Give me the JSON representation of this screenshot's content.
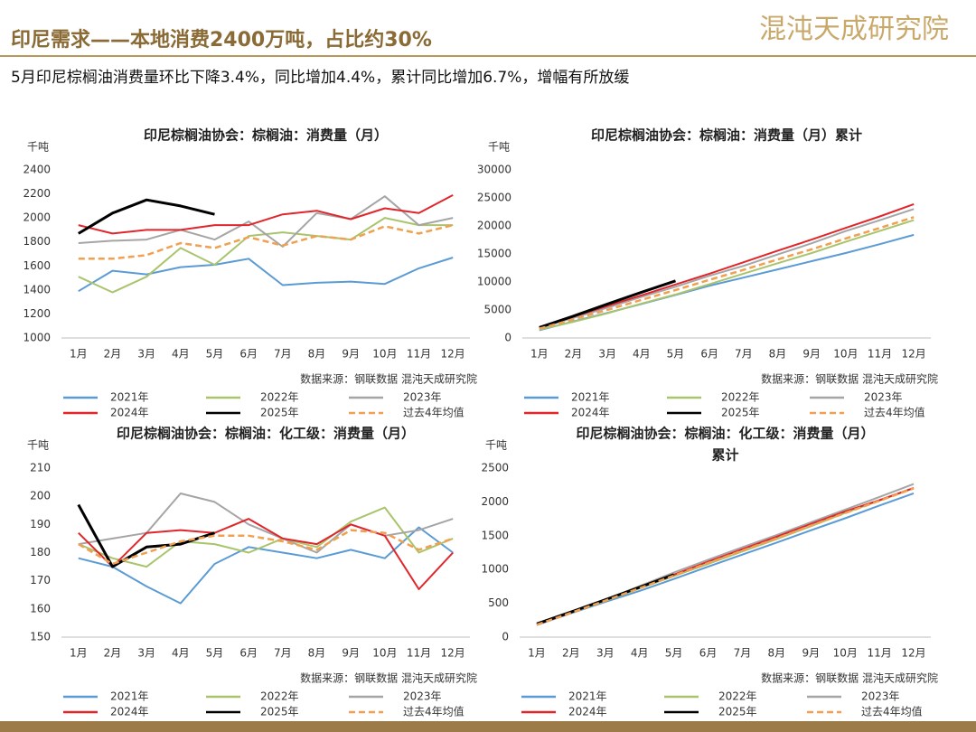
{
  "header": {
    "title": "印尼需求——本地消费2400万吨，占比约30%",
    "logo": "混沌天成研究院",
    "subtitle": "5月印尼棕榈油消费量环比下降3.4%，同比增加4.4%，累计同比增加6.7%，增幅有所放缓"
  },
  "chart_data": [
    {
      "type": "line",
      "title": "印尼棕榈油协会：棕榈油：消费量（月）",
      "y_label": "千吨",
      "source": "数据来源：钢联数据  混沌天成研究院",
      "categories": [
        "1月",
        "2月",
        "3月",
        "4月",
        "5月",
        "6月",
        "7月",
        "8月",
        "9月",
        "10月",
        "11月",
        "12月"
      ],
      "ylim": [
        1000,
        2400
      ],
      "yticks": [
        1000,
        1200,
        1400,
        1600,
        1800,
        2000,
        2200,
        2400
      ],
      "series": [
        {
          "name": "2021年",
          "color": "#5b9bd5",
          "values": [
            1390,
            1560,
            1530,
            1590,
            1610,
            1660,
            1440,
            1460,
            1470,
            1450,
            1580,
            1670
          ]
        },
        {
          "name": "2022年",
          "color": "#a9c46c",
          "values": [
            1510,
            1380,
            1510,
            1750,
            1610,
            1850,
            1880,
            1850,
            1820,
            2000,
            1940,
            1940
          ]
        },
        {
          "name": "2023年",
          "color": "#a5a5a5",
          "values": [
            1790,
            1810,
            1820,
            1900,
            1820,
            1970,
            1760,
            2040,
            1990,
            2180,
            1940,
            2000
          ]
        },
        {
          "name": "2024年",
          "color": "#e0262b",
          "values": [
            1940,
            1870,
            1900,
            1900,
            1940,
            1940,
            2030,
            2060,
            1990,
            2080,
            2040,
            2190
          ]
        },
        {
          "name": "2025年",
          "color": "#000000",
          "values": [
            1870,
            2040,
            2150,
            2100,
            2030,
            null,
            null,
            null,
            null,
            null,
            null,
            null
          ]
        },
        {
          "name": "过去4年均值",
          "color": "#f0a050",
          "dash": true,
          "values": [
            1660,
            1660,
            1690,
            1790,
            1750,
            1840,
            1770,
            1850,
            1820,
            1930,
            1870,
            1940
          ]
        }
      ]
    },
    {
      "type": "line",
      "title": "印尼棕榈油协会：棕榈油：消费量（月）累计",
      "y_label": "千吨",
      "source": "数据来源：钢联数据  混沌天成研究院",
      "categories": [
        "1月",
        "2月",
        "3月",
        "4月",
        "5月",
        "6月",
        "7月",
        "8月",
        "9月",
        "10月",
        "11月",
        "12月"
      ],
      "ylim": [
        0,
        30000
      ],
      "yticks": [
        0,
        5000,
        10000,
        15000,
        20000,
        25000,
        30000
      ],
      "series": [
        {
          "name": "2021年",
          "color": "#5b9bd5",
          "values": [
            1390,
            2950,
            4480,
            6070,
            7680,
            9340,
            10780,
            12240,
            13710,
            15160,
            16740,
            18410
          ]
        },
        {
          "name": "2022年",
          "color": "#a9c46c",
          "values": [
            1510,
            2890,
            4400,
            6150,
            7760,
            9610,
            11490,
            13340,
            15160,
            17160,
            19100,
            21040
          ]
        },
        {
          "name": "2023年",
          "color": "#a5a5a5",
          "values": [
            1790,
            3600,
            5420,
            7320,
            9140,
            11110,
            12870,
            14910,
            16900,
            19080,
            21020,
            23020
          ]
        },
        {
          "name": "2024年",
          "color": "#e0262b",
          "values": [
            1940,
            3810,
            5710,
            7610,
            9550,
            11490,
            13520,
            15580,
            17570,
            19650,
            21690,
            23880
          ]
        },
        {
          "name": "2025年",
          "color": "#000000",
          "values": [
            1870,
            3910,
            6060,
            8160,
            10190,
            null,
            null,
            null,
            null,
            null,
            null,
            null
          ]
        },
        {
          "name": "过去4年均值",
          "color": "#f0a050",
          "dash": true,
          "values": [
            1660,
            3320,
            5010,
            6800,
            8550,
            10390,
            12160,
            14010,
            15830,
            17760,
            19630,
            21570
          ]
        }
      ]
    },
    {
      "type": "line",
      "title": "印尼棕榈油协会：棕榈油：化工级：消费量（月）",
      "y_label": "千吨",
      "source": "数据来源：钢联数据  混沌天成研究院",
      "categories": [
        "1月",
        "2月",
        "3月",
        "4月",
        "5月",
        "6月",
        "7月",
        "8月",
        "9月",
        "10月",
        "11月",
        "12月"
      ],
      "ylim": [
        150,
        210
      ],
      "yticks": [
        150,
        160,
        170,
        180,
        190,
        200,
        210
      ],
      "series": [
        {
          "name": "2021年",
          "color": "#5b9bd5",
          "values": [
            178,
            175,
            168,
            162,
            176,
            182,
            180,
            178,
            181,
            178,
            189,
            180
          ]
        },
        {
          "name": "2022年",
          "color": "#a9c46c",
          "values": [
            183,
            178,
            175,
            184,
            183,
            180,
            185,
            182,
            191,
            196,
            180,
            185
          ]
        },
        {
          "name": "2023年",
          "color": "#a5a5a5",
          "values": [
            183,
            185,
            187,
            201,
            198,
            190,
            185,
            180,
            190,
            186,
            188,
            192
          ]
        },
        {
          "name": "2024年",
          "color": "#e0262b",
          "values": [
            187,
            175,
            187,
            188,
            187,
            192,
            185,
            183,
            190,
            186,
            167,
            180
          ]
        },
        {
          "name": "2025年",
          "color": "#000000",
          "values": [
            197,
            175,
            182,
            183,
            187,
            null,
            null,
            null,
            null,
            null,
            null,
            null
          ]
        },
        {
          "name": "过去4年均值",
          "color": "#f0a050",
          "dash": true,
          "values": [
            183,
            176,
            180,
            184,
            186,
            186,
            184,
            181,
            188,
            187,
            181,
            185
          ]
        }
      ]
    },
    {
      "type": "line",
      "title": "印尼棕榈油协会：棕榈油：化工级：消费量（月）",
      "subtitle": "累计",
      "y_label": "千吨",
      "source": "数据来源：钢联数据  混沌天成研究院",
      "categories": [
        "1月",
        "2月",
        "3月",
        "4月",
        "5月",
        "6月",
        "7月",
        "8月",
        "9月",
        "10月",
        "11月",
        "12月"
      ],
      "ylim": [
        0,
        2500
      ],
      "yticks": [
        0,
        500,
        1000,
        1500,
        2000,
        2500
      ],
      "series": [
        {
          "name": "2021年",
          "color": "#5b9bd5",
          "values": [
            178,
            353,
            521,
            683,
            859,
            1041,
            1221,
            1399,
            1580,
            1758,
            1947,
            2127
          ]
        },
        {
          "name": "2022年",
          "color": "#a9c46c",
          "values": [
            183,
            361,
            536,
            720,
            903,
            1083,
            1268,
            1450,
            1641,
            1837,
            2017,
            2202
          ]
        },
        {
          "name": "2023年",
          "color": "#a5a5a5",
          "values": [
            183,
            368,
            555,
            756,
            954,
            1144,
            1329,
            1509,
            1699,
            1885,
            2073,
            2265
          ]
        },
        {
          "name": "2024年",
          "color": "#e0262b",
          "values": [
            187,
            362,
            549,
            737,
            924,
            1116,
            1301,
            1484,
            1674,
            1860,
            2027,
            2207
          ]
        },
        {
          "name": "2025年",
          "color": "#000000",
          "values": [
            197,
            372,
            554,
            737,
            924,
            null,
            null,
            null,
            null,
            null,
            null,
            null
          ]
        },
        {
          "name": "过去4年均值",
          "color": "#f0a050",
          "dash": true,
          "values": [
            183,
            359,
            539,
            723,
            909,
            1095,
            1279,
            1460,
            1648,
            1835,
            2016,
            2201
          ]
        }
      ]
    }
  ]
}
